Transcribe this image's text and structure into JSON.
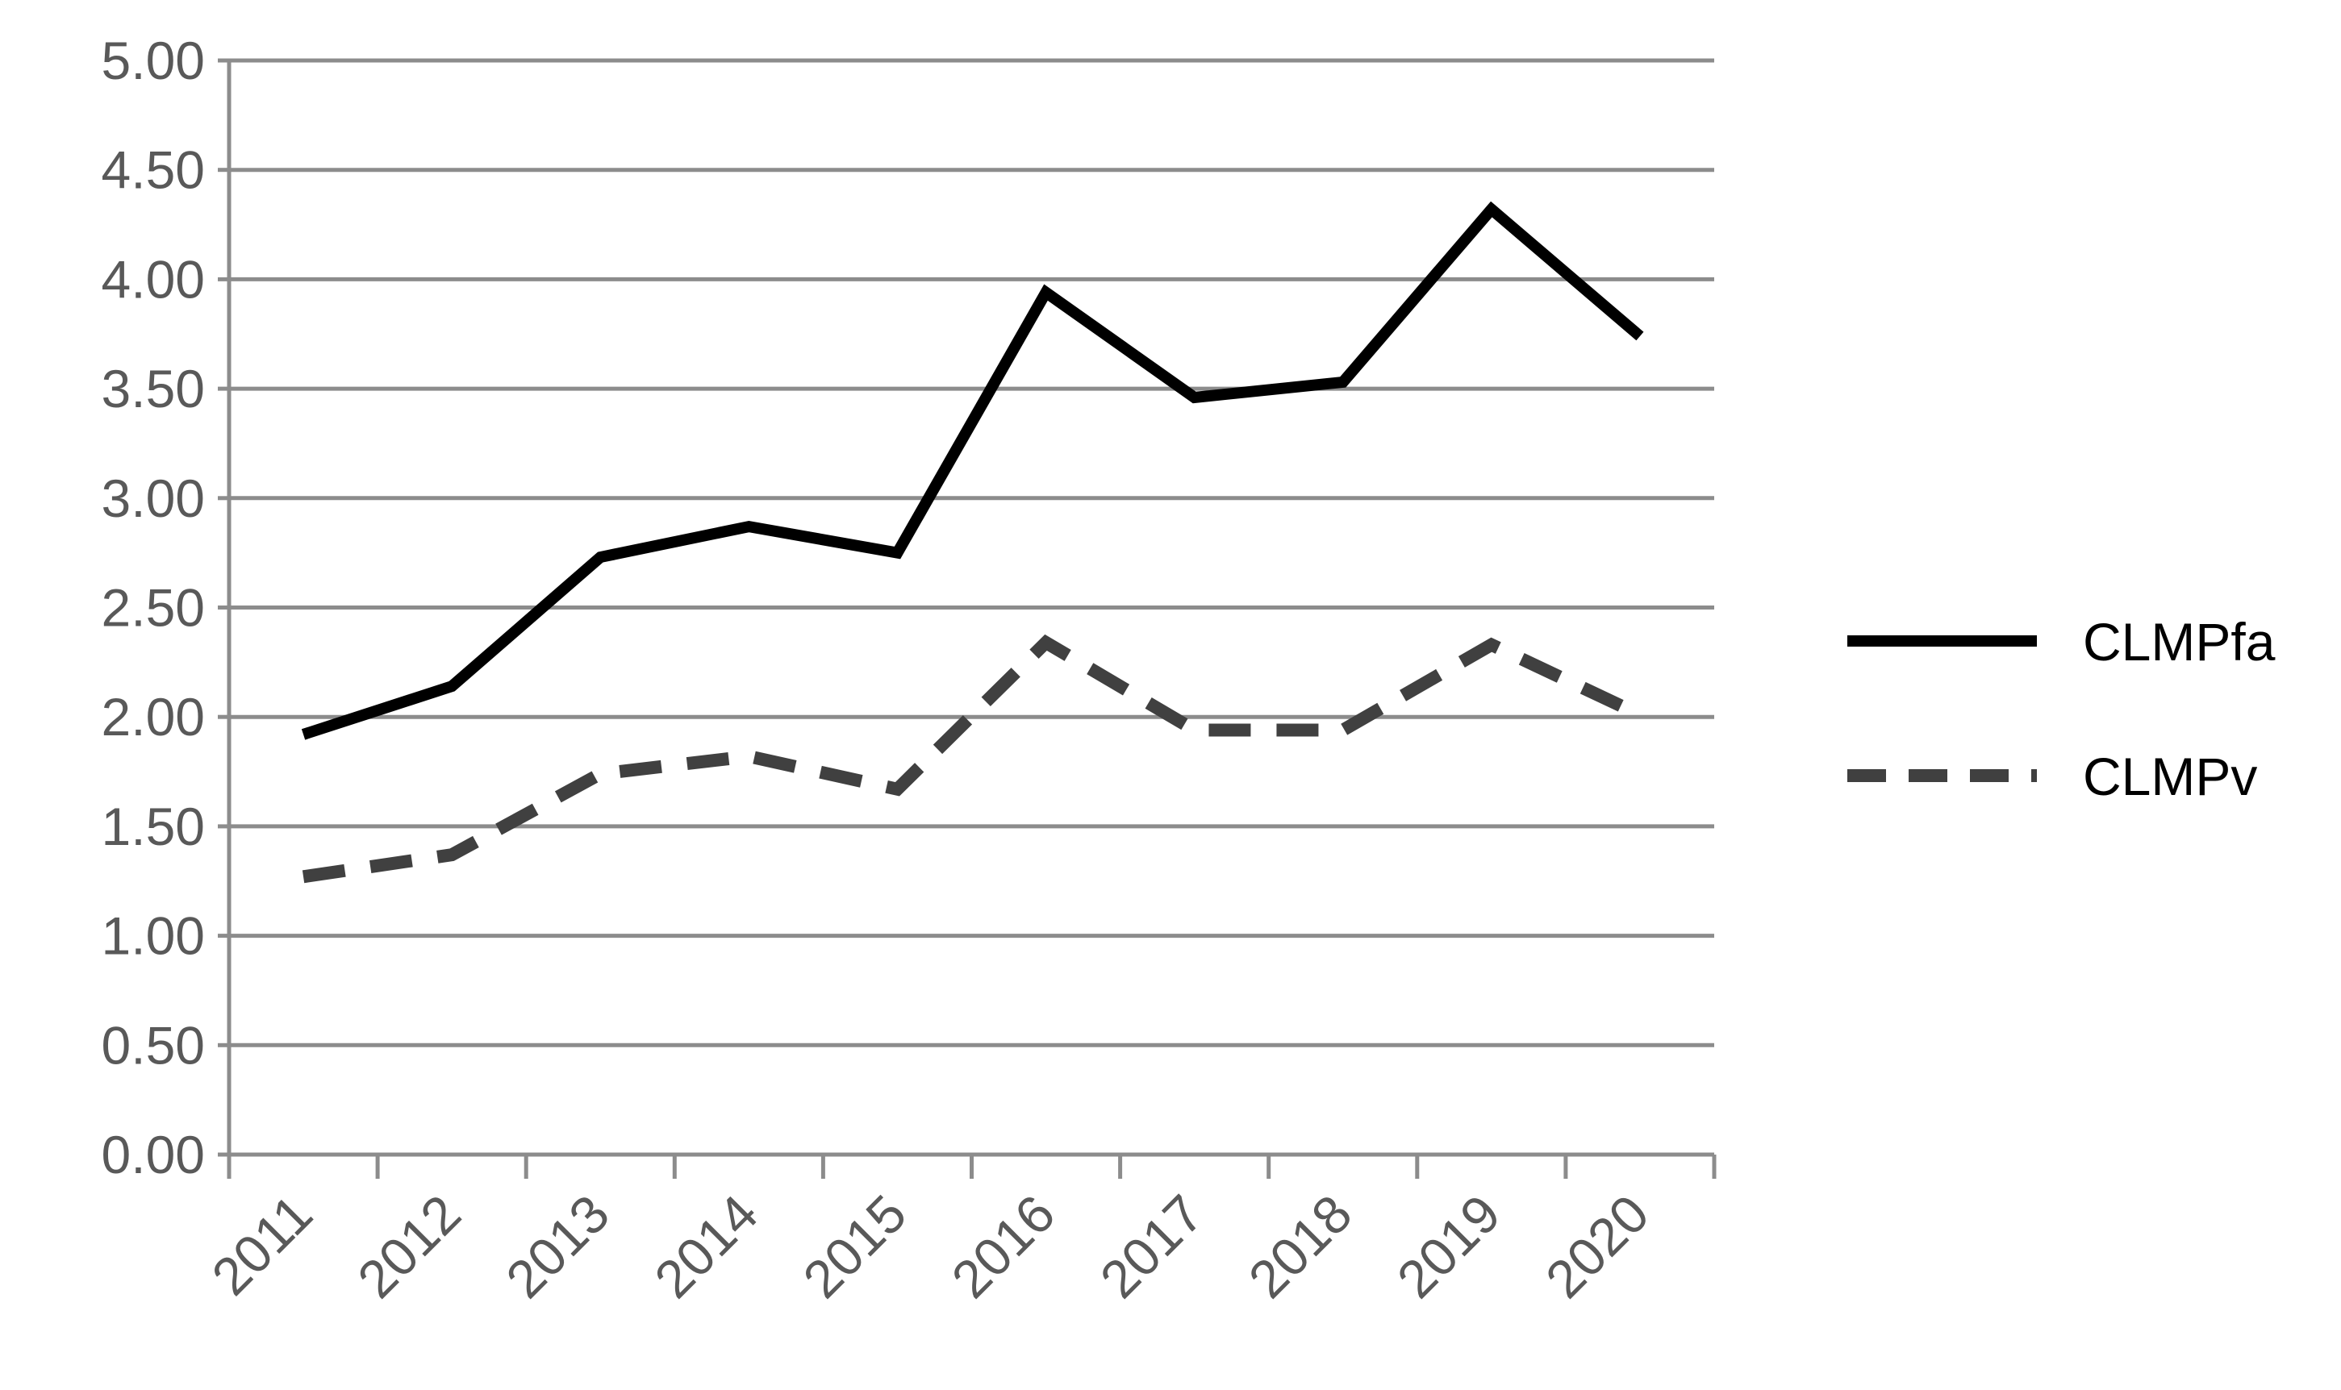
{
  "chart_data": {
    "type": "line",
    "title": "",
    "xlabel": "",
    "ylabel": "",
    "categories": [
      "2011",
      "2012",
      "2013",
      "2014",
      "2015",
      "2016",
      "2017",
      "2018",
      "2019",
      "2020"
    ],
    "ylim": [
      0,
      5
    ],
    "yticks": [
      "0.00",
      "0.50",
      "1.00",
      "1.50",
      "2.00",
      "2.50",
      "3.00",
      "3.50",
      "4.00",
      "4.50",
      "5.00"
    ],
    "grid": true,
    "legend_position": "right",
    "series": [
      {
        "name": "CLMPfa",
        "color": "#000000",
        "dash": "solid",
        "values": [
          1.92,
          2.14,
          2.73,
          2.87,
          2.75,
          3.94,
          3.46,
          3.53,
          4.32,
          3.74
        ]
      },
      {
        "name": "CLMPv",
        "color": "#404040",
        "dash": "dashed",
        "values": [
          1.27,
          1.37,
          1.74,
          1.82,
          1.67,
          2.34,
          1.94,
          1.94,
          2.33,
          2.01
        ]
      }
    ]
  }
}
